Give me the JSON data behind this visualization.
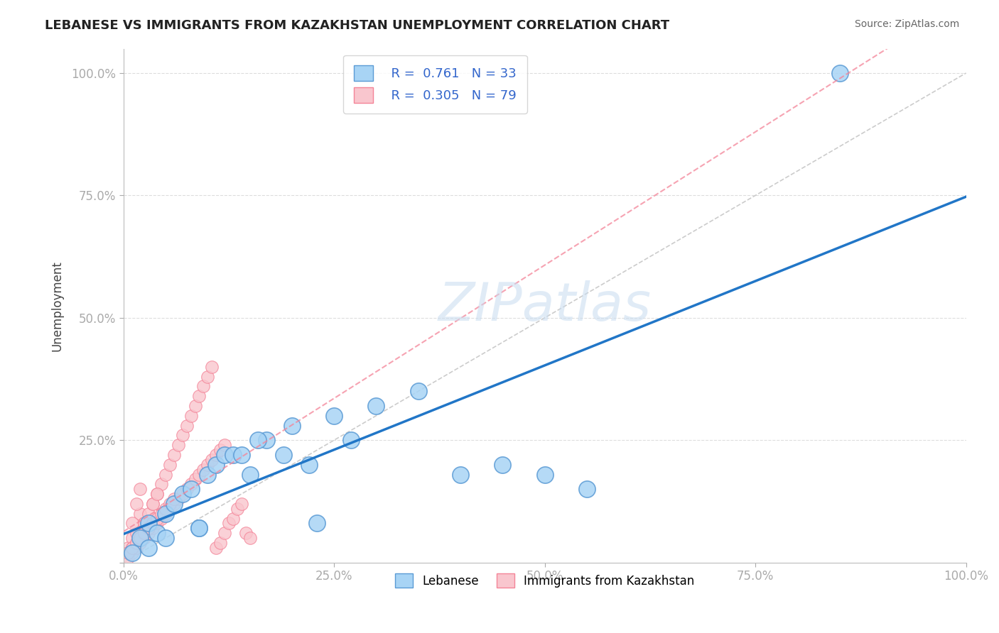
{
  "title": "LEBANESE VS IMMIGRANTS FROM KAZAKHSTAN UNEMPLOYMENT CORRELATION CHART",
  "source": "Source: ZipAtlas.com",
  "ylabel": "Unemployment",
  "xlim": [
    0,
    100
  ],
  "ylim": [
    0,
    105
  ],
  "xticks": [
    0,
    25,
    50,
    75,
    100
  ],
  "yticks": [
    0,
    25,
    50,
    75,
    100
  ],
  "xtick_labels": [
    "0.0%",
    "25.0%",
    "50.0%",
    "75.0%",
    "100.0%"
  ],
  "ytick_labels": [
    "",
    "25.0%",
    "50.0%",
    "75.0%",
    "100.0%"
  ],
  "legend_R1": "0.761",
  "legend_N1": "33",
  "legend_R2": "0.305",
  "legend_N2": "79",
  "blue_color": "#A8D4F5",
  "blue_edge_color": "#5B9BD5",
  "pink_color": "#F9C6CE",
  "pink_edge_color": "#F48498",
  "line_blue_color": "#2176C7",
  "line_pink_color": "#F48498",
  "grid_color": "#DDDDDD",
  "ref_line_color": "#CCCCCC",
  "blue_x": [
    1,
    2,
    3,
    4,
    5,
    6,
    7,
    8,
    9,
    10,
    11,
    12,
    13,
    14,
    15,
    17,
    19,
    20,
    22,
    25,
    27,
    30,
    35,
    40,
    45,
    50,
    55,
    3,
    5,
    9,
    16,
    85,
    23
  ],
  "blue_y": [
    2,
    5,
    8,
    6,
    10,
    12,
    14,
    15,
    7,
    18,
    20,
    22,
    22,
    22,
    18,
    25,
    22,
    28,
    20,
    30,
    25,
    32,
    35,
    18,
    20,
    18,
    15,
    3,
    5,
    7,
    25,
    100,
    8
  ],
  "pink_x": [
    0.5,
    1.0,
    1.5,
    2.0,
    2.5,
    3.0,
    3.5,
    4.0,
    4.5,
    5.0,
    5.5,
    6.0,
    6.5,
    7.0,
    7.5,
    8.0,
    8.5,
    9.0,
    9.5,
    10.0,
    10.5,
    11.0,
    11.5,
    12.0,
    12.5,
    13.0,
    13.5,
    14.0,
    14.5,
    15.0,
    1.0,
    1.5,
    2.0,
    2.5,
    3.0,
    3.5,
    4.0,
    0.5,
    1.0,
    1.5,
    2.0,
    2.5,
    3.0,
    0.5,
    1.0,
    1.5,
    2.0,
    2.5,
    3.0,
    3.5,
    4.0,
    4.5,
    5.0,
    5.5,
    6.0,
    6.5,
    7.0,
    7.5,
    8.0,
    8.5,
    9.0,
    9.5,
    10.0,
    10.5,
    11.0,
    11.5,
    12.0,
    0.5,
    1.0,
    1.5,
    2.0,
    2.5,
    3.0,
    3.5,
    4.0,
    4.5,
    5.0,
    5.5,
    6.0
  ],
  "pink_y": [
    3,
    5,
    6,
    10,
    8,
    10,
    12,
    14,
    16,
    18,
    20,
    22,
    24,
    26,
    28,
    30,
    32,
    34,
    36,
    38,
    40,
    3,
    4,
    6,
    8,
    9,
    11,
    12,
    6,
    5,
    8,
    12,
    15,
    8,
    7,
    12,
    14,
    2,
    3,
    4,
    5,
    6,
    7,
    1,
    2,
    3,
    4,
    5,
    6,
    7,
    8,
    9,
    10,
    11,
    12,
    13,
    14,
    15,
    16,
    17,
    18,
    19,
    20,
    21,
    22,
    23,
    24,
    2,
    3,
    4,
    5,
    6,
    7,
    8,
    9,
    10,
    11,
    12,
    13
  ]
}
